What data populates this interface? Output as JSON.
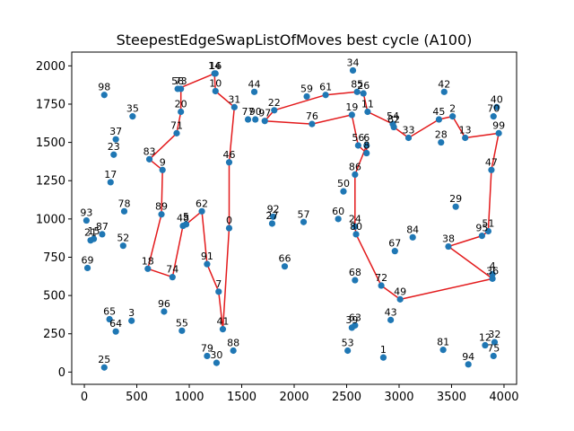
{
  "chart_data": {
    "type": "scatter",
    "title": "SteepestEdgeSwapListOfMoves best cycle (A100)",
    "xlabel": "",
    "ylabel": "",
    "xlim": [
      -120,
      4120
    ],
    "ylim": [
      -80,
      2090
    ],
    "x_ticks": [
      0,
      500,
      1000,
      1500,
      2000,
      2500,
      3000,
      3500,
      4000
    ],
    "y_ticks": [
      0,
      250,
      500,
      750,
      1000,
      1250,
      1500,
      1750,
      2000
    ],
    "grid": false,
    "point_color": "#1f77b4",
    "line_color": "#e31a1c",
    "points": [
      {
        "id": "0",
        "x": 1380,
        "y": 940
      },
      {
        "id": "1",
        "x": 2850,
        "y": 95
      },
      {
        "id": "2",
        "x": 3510,
        "y": 1670
      },
      {
        "id": "3",
        "x": 450,
        "y": 335
      },
      {
        "id": "4",
        "x": 3890,
        "y": 640
      },
      {
        "id": "5",
        "x": 970,
        "y": 965
      },
      {
        "id": "6",
        "x": 2690,
        "y": 1480
      },
      {
        "id": "7",
        "x": 1280,
        "y": 525
      },
      {
        "id": "8",
        "x": 2690,
        "y": 1430
      },
      {
        "id": "9",
        "x": 745,
        "y": 1320
      },
      {
        "id": "10",
        "x": 1250,
        "y": 1835
      },
      {
        "id": "11",
        "x": 2700,
        "y": 1700
      },
      {
        "id": "12",
        "x": 3820,
        "y": 175
      },
      {
        "id": "13",
        "x": 3630,
        "y": 1530
      },
      {
        "id": "14",
        "x": 1240,
        "y": 1950
      },
      {
        "id": "15",
        "x": 90,
        "y": 870
      },
      {
        "id": "16",
        "x": 1250,
        "y": 1950
      },
      {
        "id": "17",
        "x": 250,
        "y": 1240
      },
      {
        "id": "18",
        "x": 605,
        "y": 675
      },
      {
        "id": "19",
        "x": 2550,
        "y": 1680
      },
      {
        "id": "20",
        "x": 920,
        "y": 1700
      },
      {
        "id": "21",
        "x": 60,
        "y": 860
      },
      {
        "id": "22",
        "x": 1810,
        "y": 1710
      },
      {
        "id": "23",
        "x": 280,
        "y": 1420
      },
      {
        "id": "24",
        "x": 2580,
        "y": 950
      },
      {
        "id": "25",
        "x": 190,
        "y": 30
      },
      {
        "id": "26",
        "x": 2660,
        "y": 1820
      },
      {
        "id": "27",
        "x": 1790,
        "y": 970
      },
      {
        "id": "28",
        "x": 3400,
        "y": 1500
      },
      {
        "id": "29",
        "x": 3540,
        "y": 1080
      },
      {
        "id": "30",
        "x": 1260,
        "y": 60
      },
      {
        "id": "31",
        "x": 1430,
        "y": 1730
      },
      {
        "id": "32",
        "x": 3910,
        "y": 195
      },
      {
        "id": "33",
        "x": 3090,
        "y": 1530
      },
      {
        "id": "34",
        "x": 2560,
        "y": 1970
      },
      {
        "id": "35",
        "x": 460,
        "y": 1670
      },
      {
        "id": "36",
        "x": 3890,
        "y": 610
      },
      {
        "id": "37",
        "x": 300,
        "y": 1520
      },
      {
        "id": "38",
        "x": 3470,
        "y": 820
      },
      {
        "id": "39",
        "x": 2550,
        "y": 290
      },
      {
        "id": "40",
        "x": 3930,
        "y": 1730
      },
      {
        "id": "41",
        "x": 1320,
        "y": 280
      },
      {
        "id": "42",
        "x": 3430,
        "y": 1830
      },
      {
        "id": "43",
        "x": 2920,
        "y": 340
      },
      {
        "id": "44",
        "x": 1620,
        "y": 1830
      },
      {
        "id": "45",
        "x": 3380,
        "y": 1650
      },
      {
        "id": "46",
        "x": 1380,
        "y": 1370
      },
      {
        "id": "47",
        "x": 3880,
        "y": 1320
      },
      {
        "id": "48",
        "x": 940,
        "y": 955
      },
      {
        "id": "49",
        "x": 3010,
        "y": 475
      },
      {
        "id": "50",
        "x": 2470,
        "y": 1180
      },
      {
        "id": "51",
        "x": 3850,
        "y": 920
      },
      {
        "id": "52",
        "x": 370,
        "y": 825
      },
      {
        "id": "53",
        "x": 2510,
        "y": 140
      },
      {
        "id": "54",
        "x": 2940,
        "y": 1620
      },
      {
        "id": "55",
        "x": 930,
        "y": 270
      },
      {
        "id": "56",
        "x": 2610,
        "y": 1480
      },
      {
        "id": "57",
        "x": 2090,
        "y": 980
      },
      {
        "id": "58",
        "x": 890,
        "y": 1850
      },
      {
        "id": "59",
        "x": 2120,
        "y": 1800
      },
      {
        "id": "60",
        "x": 2420,
        "y": 1000
      },
      {
        "id": "61",
        "x": 2300,
        "y": 1810
      },
      {
        "id": "62",
        "x": 1120,
        "y": 1050
      },
      {
        "id": "63",
        "x": 2580,
        "y": 305
      },
      {
        "id": "64",
        "x": 300,
        "y": 265
      },
      {
        "id": "65",
        "x": 240,
        "y": 345
      },
      {
        "id": "66",
        "x": 1910,
        "y": 690
      },
      {
        "id": "67",
        "x": 2960,
        "y": 790
      },
      {
        "id": "68",
        "x": 2580,
        "y": 600
      },
      {
        "id": "69",
        "x": 30,
        "y": 680
      },
      {
        "id": "70",
        "x": 3900,
        "y": 1670
      },
      {
        "id": "71",
        "x": 880,
        "y": 1560
      },
      {
        "id": "72",
        "x": 2830,
        "y": 565
      },
      {
        "id": "73",
        "x": 920,
        "y": 1850
      },
      {
        "id": "74",
        "x": 840,
        "y": 620
      },
      {
        "id": "75",
        "x": 3900,
        "y": 105
      },
      {
        "id": "76",
        "x": 2170,
        "y": 1620
      },
      {
        "id": "77",
        "x": 1560,
        "y": 1650
      },
      {
        "id": "78",
        "x": 380,
        "y": 1050
      },
      {
        "id": "79",
        "x": 1170,
        "y": 105
      },
      {
        "id": "80",
        "x": 2590,
        "y": 900
      },
      {
        "id": "81",
        "x": 3420,
        "y": 145
      },
      {
        "id": "82",
        "x": 2950,
        "y": 1600
      },
      {
        "id": "83",
        "x": 620,
        "y": 1390
      },
      {
        "id": "84",
        "x": 3130,
        "y": 880
      },
      {
        "id": "85",
        "x": 2600,
        "y": 1830
      },
      {
        "id": "86",
        "x": 2580,
        "y": 1290
      },
      {
        "id": "87",
        "x": 170,
        "y": 900
      },
      {
        "id": "88",
        "x": 1420,
        "y": 140
      },
      {
        "id": "89",
        "x": 735,
        "y": 1030
      },
      {
        "id": "90",
        "x": 1630,
        "y": 1650
      },
      {
        "id": "91",
        "x": 1170,
        "y": 705
      },
      {
        "id": "92",
        "x": 1800,
        "y": 1015
      },
      {
        "id": "93",
        "x": 20,
        "y": 990
      },
      {
        "id": "94",
        "x": 3660,
        "y": 50
      },
      {
        "id": "95",
        "x": 3790,
        "y": 890
      },
      {
        "id": "96",
        "x": 760,
        "y": 395
      },
      {
        "id": "97",
        "x": 1720,
        "y": 1640
      },
      {
        "id": "98",
        "x": 190,
        "y": 1810
      },
      {
        "id": "99",
        "x": 3950,
        "y": 1560
      }
    ],
    "cycle": [
      "0",
      "46",
      "31",
      "10",
      "14",
      "58",
      "73",
      "20",
      "71",
      "83",
      "9",
      "89",
      "18",
      "74",
      "48",
      "5",
      "62",
      "91",
      "7",
      "41",
      "0"
    ],
    "cycle2": [
      "97",
      "22",
      "61",
      "85",
      "26",
      "11",
      "54",
      "82",
      "33",
      "45",
      "2",
      "13",
      "99",
      "47",
      "51",
      "95",
      "38",
      "36",
      "49",
      "72",
      "80",
      "24",
      "86",
      "6",
      "8",
      "56",
      "19",
      "76",
      "97"
    ]
  }
}
